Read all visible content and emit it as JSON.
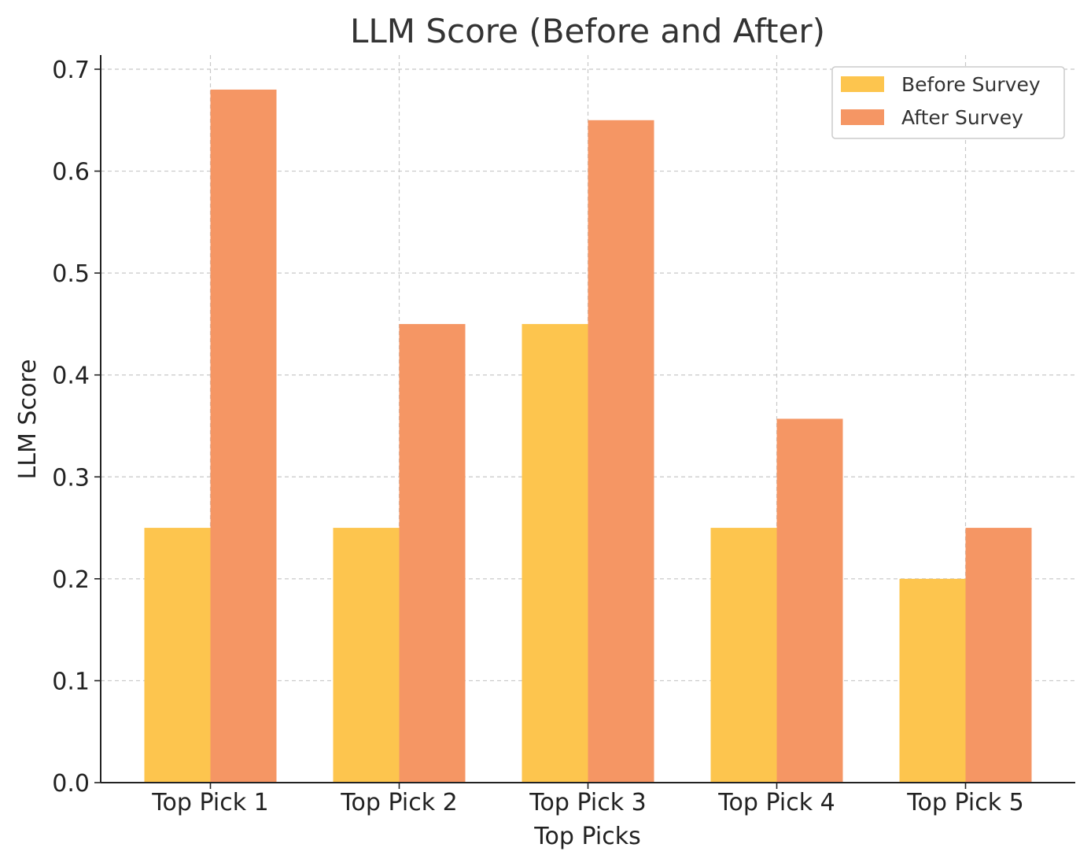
{
  "chart_data": {
    "type": "bar",
    "title": "LLM Score (Before and After)",
    "xlabel": "Top Picks",
    "ylabel": "LLM Score",
    "categories": [
      "Top Pick 1",
      "Top Pick 2",
      "Top Pick 3",
      "Top Pick 4",
      "Top Pick 5"
    ],
    "series": [
      {
        "name": "Before Survey",
        "color": "#FDC54E",
        "values": [
          0.25,
          0.25,
          0.45,
          0.25,
          0.2
        ]
      },
      {
        "name": "After Survey",
        "color": "#F59664",
        "values": [
          0.68,
          0.45,
          0.65,
          0.357,
          0.25
        ]
      }
    ],
    "ylim": [
      0,
      0.7
    ],
    "yticks": [
      "0.0",
      "0.1",
      "0.2",
      "0.3",
      "0.4",
      "0.5",
      "0.6",
      "0.7"
    ],
    "grid": true,
    "legend_position": "top-right"
  }
}
